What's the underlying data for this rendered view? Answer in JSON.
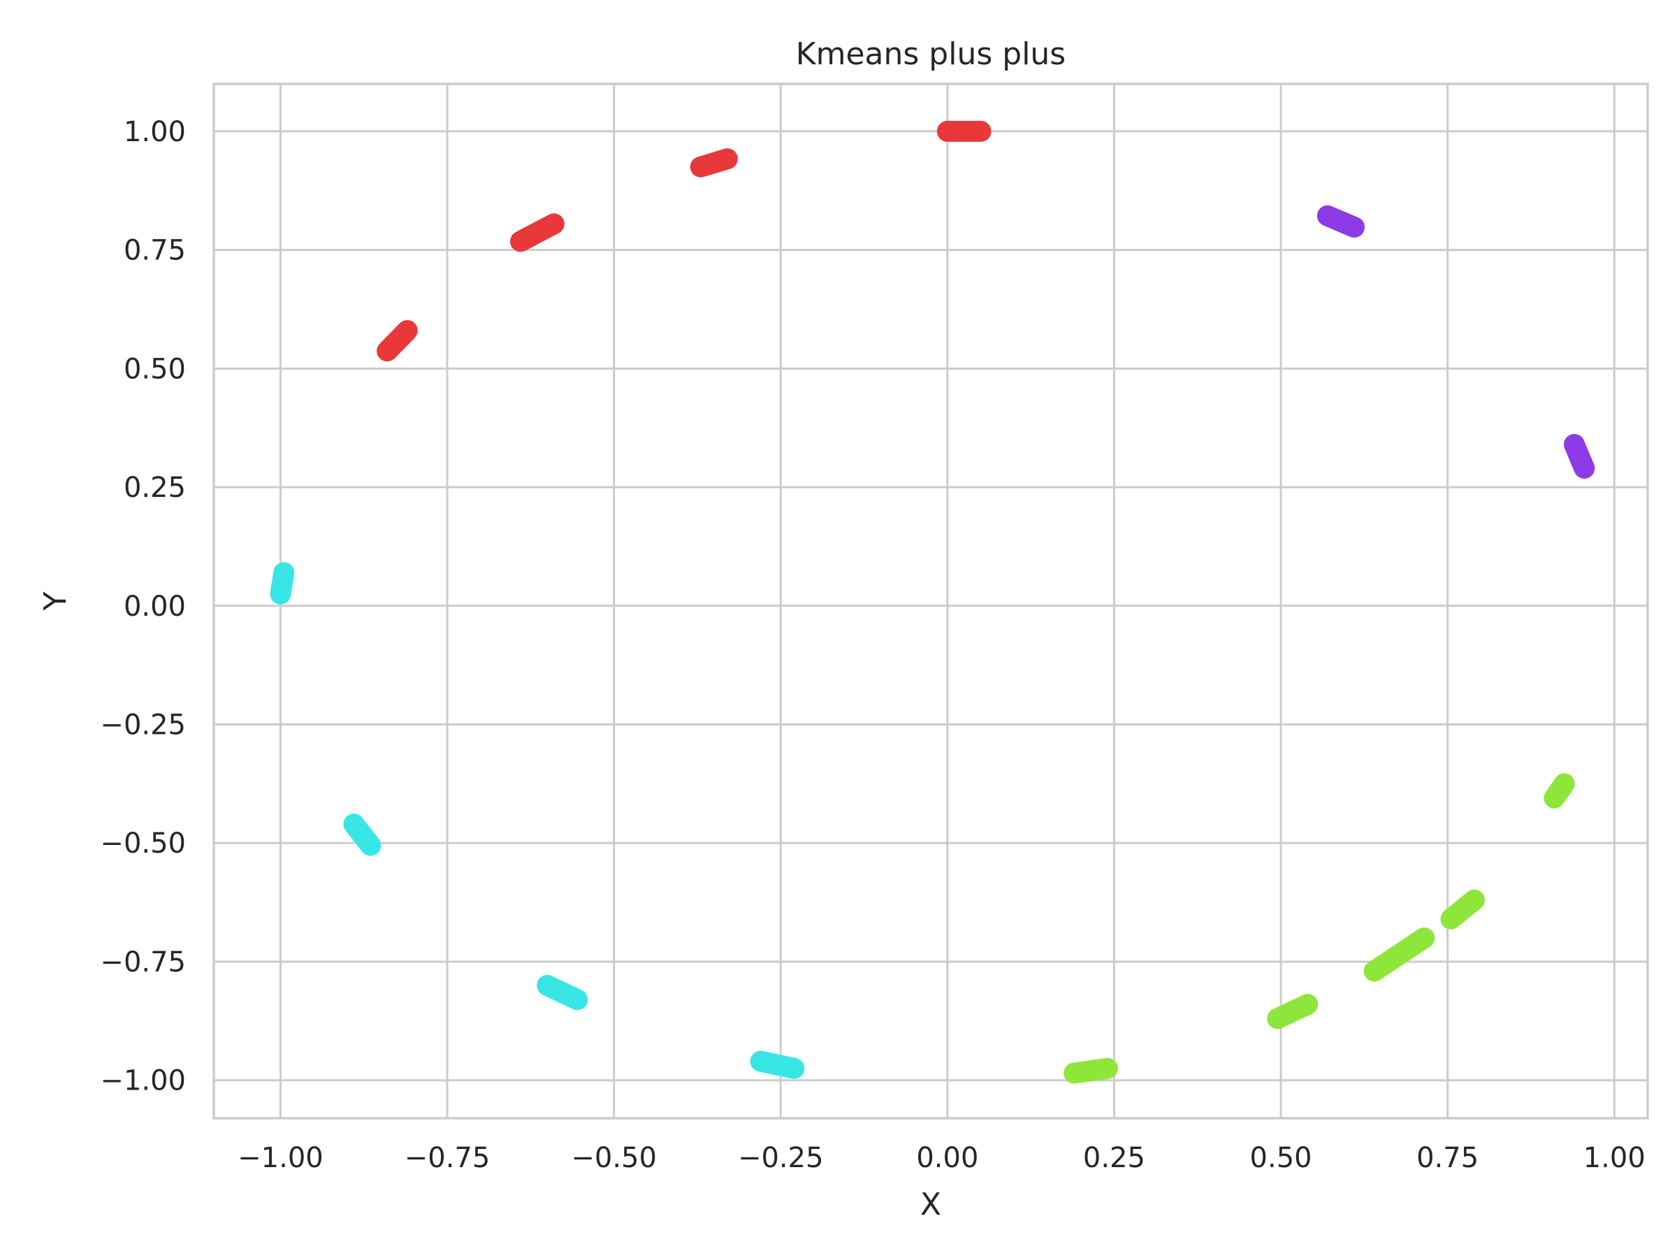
{
  "chart_data": {
    "type": "scatter",
    "title": "Kmeans plus plus",
    "xlabel": "X",
    "ylabel": "Y",
    "xlim": [
      -1.1,
      1.05
    ],
    "ylim": [
      -1.08,
      1.1
    ],
    "grid": true,
    "xticks": [
      -1.0,
      -0.75,
      -0.5,
      -0.25,
      0.0,
      0.25,
      0.5,
      0.75,
      1.0
    ],
    "xtick_labels": [
      "−1.00",
      "−0.75",
      "−0.50",
      "−0.25",
      "0.00",
      "0.25",
      "0.50",
      "0.75",
      "1.00"
    ],
    "yticks": [
      1.0,
      0.75,
      0.5,
      0.25,
      0.0,
      -0.25,
      -0.5,
      -0.75,
      -1.0
    ],
    "ytick_labels": [
      "1.00",
      "0.75",
      "0.50",
      "0.25",
      "0.00",
      "−0.25",
      "−0.50",
      "−0.75",
      "−1.00"
    ],
    "series": [
      {
        "color": "#e8383a",
        "segments": [
          [
            [
              0.0,
              1.0
            ],
            [
              0.05,
              1.0
            ]
          ],
          [
            [
              -0.37,
              0.925
            ],
            [
              -0.33,
              0.942
            ]
          ],
          [
            [
              -0.64,
              0.768
            ],
            [
              -0.59,
              0.805
            ]
          ],
          [
            [
              -0.84,
              0.537
            ],
            [
              -0.81,
              0.58
            ]
          ]
        ]
      },
      {
        "color": "#8e3ae6",
        "segments": [
          [
            [
              0.57,
              0.822
            ],
            [
              0.61,
              0.798
            ]
          ],
          [
            [
              0.94,
              0.34
            ],
            [
              0.955,
              0.29
            ]
          ]
        ]
      },
      {
        "color": "#38e6e6",
        "segments": [
          [
            [
              -0.995,
              0.07
            ],
            [
              -1.0,
              0.025
            ]
          ],
          [
            [
              -0.89,
              -0.46
            ],
            [
              -0.865,
              -0.505
            ]
          ],
          [
            [
              -0.6,
              -0.8
            ],
            [
              -0.555,
              -0.83
            ]
          ],
          [
            [
              -0.28,
              -0.96
            ],
            [
              -0.23,
              -0.975
            ]
          ]
        ]
      },
      {
        "color": "#8ee63a",
        "segments": [
          [
            [
              0.19,
              -0.985
            ],
            [
              0.24,
              -0.975
            ]
          ],
          [
            [
              0.495,
              -0.87
            ],
            [
              0.54,
              -0.84
            ]
          ],
          [
            [
              0.64,
              -0.77
            ],
            [
              0.715,
              -0.7
            ]
          ],
          [
            [
              0.755,
              -0.66
            ],
            [
              0.79,
              -0.62
            ]
          ],
          [
            [
              0.91,
              -0.405
            ],
            [
              0.925,
              -0.375
            ]
          ]
        ]
      }
    ]
  }
}
